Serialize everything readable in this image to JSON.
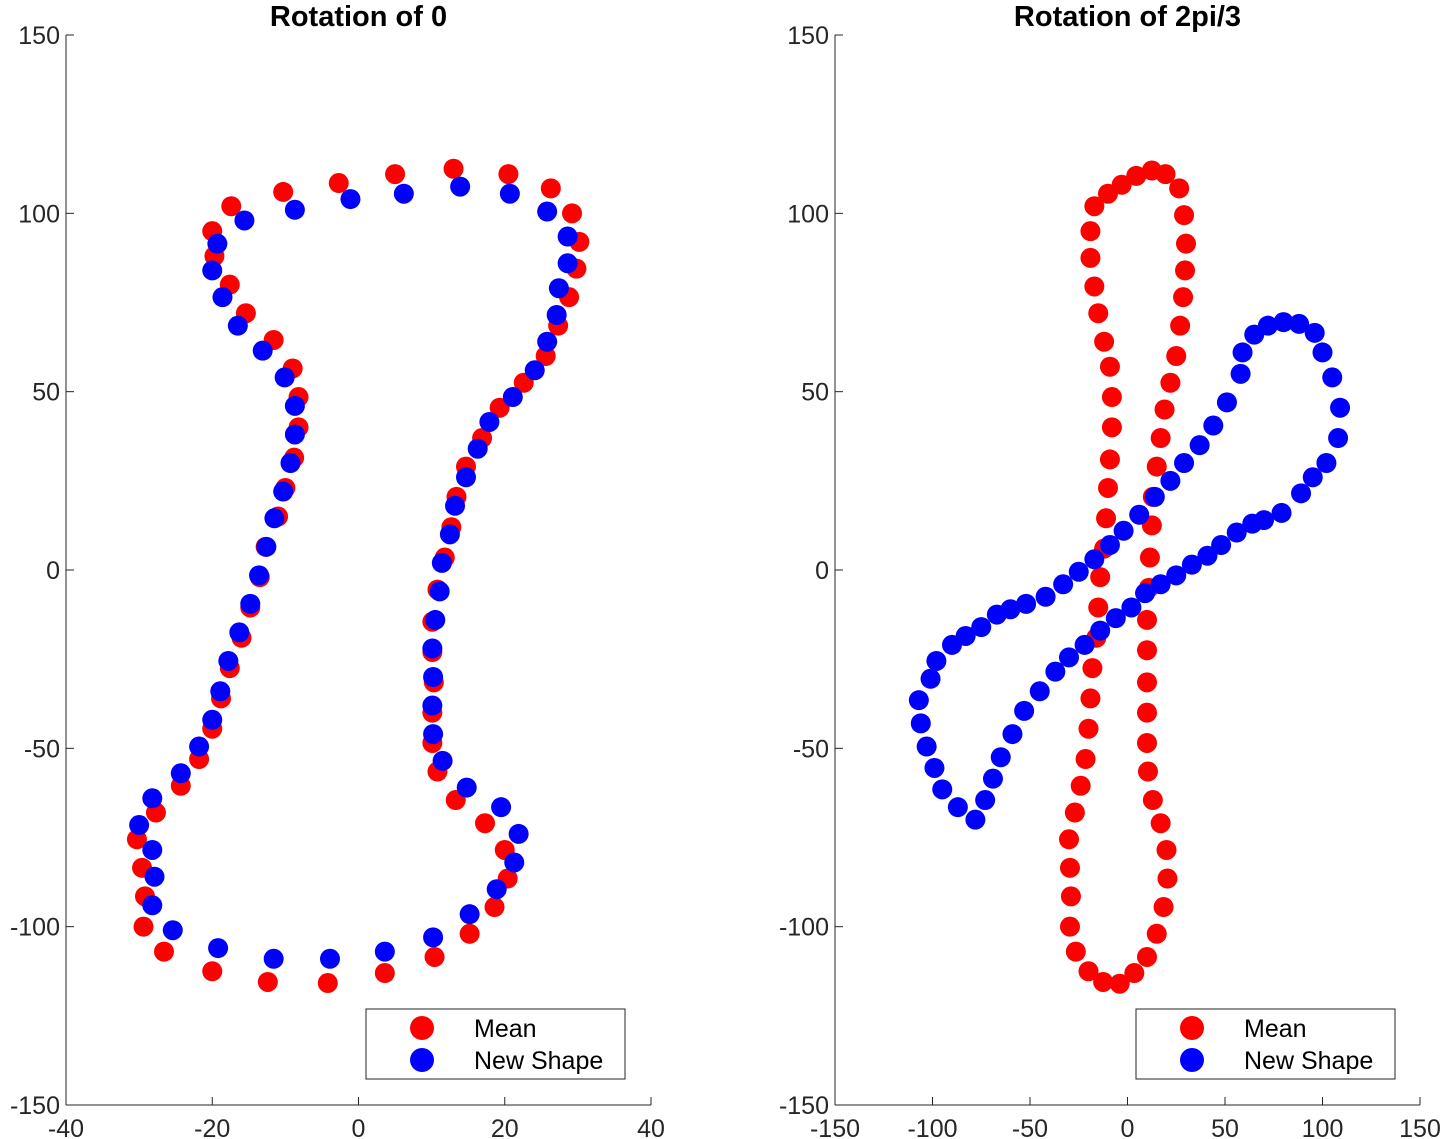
{
  "chart_data": [
    {
      "type": "scatter",
      "title": "Rotation of 0",
      "xlabel": "",
      "ylabel": "",
      "xlim": [
        -40,
        40
      ],
      "ylim": [
        -150,
        150
      ],
      "xticks": [
        -40,
        -20,
        0,
        20,
        40
      ],
      "yticks": [
        -150,
        -100,
        -50,
        0,
        50,
        100,
        150
      ],
      "grid": false,
      "legend_position": "bottom-right",
      "series": [
        {
          "name": "Mean",
          "color": "#ff0000",
          "points": [
            [
              -20,
              95
            ],
            [
              -19.7,
              88
            ],
            [
              -17.6,
              80
            ],
            [
              -15.4,
              72
            ],
            [
              -11.6,
              64.5
            ],
            [
              -9,
              56.5
            ],
            [
              -8.2,
              48.5
            ],
            [
              -8.2,
              40
            ],
            [
              -8.8,
              31.5
            ],
            [
              -10,
              23
            ],
            [
              -11,
              15
            ],
            [
              -12.7,
              6.5
            ],
            [
              -13.5,
              -2
            ],
            [
              -14.8,
              -10.5
            ],
            [
              -16,
              -19
            ],
            [
              -17.6,
              -27.5
            ],
            [
              -18.8,
              -36
            ],
            [
              -20,
              -44.5
            ],
            [
              -21.8,
              -53
            ],
            [
              -24.3,
              -60.5
            ],
            [
              -27.7,
              -68
            ],
            [
              -30.3,
              -75.5
            ],
            [
              -29.6,
              -83.5
            ],
            [
              -29.2,
              -91.5
            ],
            [
              -29.4,
              -100
            ],
            [
              -26.6,
              -107
            ],
            [
              -20,
              -112.5
            ],
            [
              -12.4,
              -115.5
            ],
            [
              -4.2,
              -115.8
            ],
            [
              3.6,
              -113
            ],
            [
              10.4,
              -108.5
            ],
            [
              15.2,
              -102
            ],
            [
              18.6,
              -94.5
            ],
            [
              20.4,
              -86.5
            ],
            [
              20,
              -78.5
            ],
            [
              17.3,
              -71
            ],
            [
              13.3,
              -64.5
            ],
            [
              10.8,
              -56.5
            ],
            [
              10.1,
              -48.5
            ],
            [
              10.1,
              -40
            ],
            [
              10.3,
              -31.5
            ],
            [
              10.1,
              -23
            ],
            [
              10.1,
              -14.5
            ],
            [
              10.8,
              -5.5
            ],
            [
              11.8,
              3.5
            ],
            [
              12.7,
              12
            ],
            [
              13.4,
              20.5
            ],
            [
              14.7,
              29
            ],
            [
              16.9,
              37
            ],
            [
              19.3,
              45.5
            ],
            [
              22.6,
              52.5
            ],
            [
              25.6,
              60
            ],
            [
              27.3,
              68.5
            ],
            [
              28.8,
              76.5
            ],
            [
              29.8,
              84.5
            ],
            [
              30.2,
              92
            ],
            [
              29.2,
              100
            ],
            [
              26.3,
              107
            ],
            [
              20.5,
              111
            ],
            [
              13,
              112.5
            ],
            [
              5,
              111
            ],
            [
              -2.7,
              108.5
            ],
            [
              -10.3,
              106
            ],
            [
              -17.4,
              102
            ]
          ]
        },
        {
          "name": "New Shape",
          "color": "#0000ff",
          "points": [
            [
              -19.3,
              91.5
            ],
            [
              -20,
              84
            ],
            [
              -18.6,
              76.5
            ],
            [
              -16.5,
              68.5
            ],
            [
              -13.1,
              61.5
            ],
            [
              -10.1,
              54
            ],
            [
              -8.7,
              46
            ],
            [
              -8.7,
              38
            ],
            [
              -9.3,
              30
            ],
            [
              -10.3,
              22
            ],
            [
              -11.5,
              14.5
            ],
            [
              -12.6,
              6.5
            ],
            [
              -13.6,
              -1.5
            ],
            [
              -14.8,
              -9.5
            ],
            [
              -16.3,
              -17.5
            ],
            [
              -17.8,
              -25.5
            ],
            [
              -18.9,
              -34
            ],
            [
              -20,
              -42
            ],
            [
              -21.8,
              -49.5
            ],
            [
              -24.3,
              -57
            ],
            [
              -28.2,
              -64
            ],
            [
              -30,
              -71.5
            ],
            [
              -28.2,
              -78.5
            ],
            [
              -27.9,
              -86
            ],
            [
              -28.2,
              -94
            ],
            [
              -25.4,
              -101
            ],
            [
              -19.2,
              -106
            ],
            [
              -11.6,
              -109
            ],
            [
              -3.9,
              -109
            ],
            [
              3.6,
              -107
            ],
            [
              10.2,
              -103
            ],
            [
              15.2,
              -96.5
            ],
            [
              18.9,
              -89.5
            ],
            [
              21.3,
              -82
            ],
            [
              21.9,
              -74
            ],
            [
              19.5,
              -66.5
            ],
            [
              14.8,
              -61
            ],
            [
              11.5,
              -53.5
            ],
            [
              10.2,
              -46
            ],
            [
              10.1,
              -38
            ],
            [
              10.2,
              -30
            ],
            [
              10.1,
              -22
            ],
            [
              10.5,
              -14
            ],
            [
              11.1,
              -6
            ],
            [
              11.4,
              2
            ],
            [
              12.5,
              10
            ],
            [
              13.2,
              18
            ],
            [
              14.7,
              26
            ],
            [
              16.3,
              34
            ],
            [
              17.9,
              41.5
            ],
            [
              21.1,
              48.5
            ],
            [
              24.1,
              56
            ],
            [
              25.8,
              64
            ],
            [
              27.1,
              71.5
            ],
            [
              27.4,
              79
            ],
            [
              28.6,
              86
            ],
            [
              28.6,
              93.5
            ],
            [
              25.8,
              100.5
            ],
            [
              20.7,
              105.5
            ],
            [
              13.9,
              107.5
            ],
            [
              6.2,
              105.5
            ],
            [
              -1.1,
              104
            ],
            [
              -8.7,
              101
            ],
            [
              -15.6,
              98
            ]
          ]
        }
      ]
    },
    {
      "type": "scatter",
      "title": "Rotation of 2pi/3",
      "xlabel": "",
      "ylabel": "",
      "xlim": [
        -150,
        150
      ],
      "ylim": [
        -150,
        150
      ],
      "xticks": [
        -150,
        -100,
        -50,
        0,
        50,
        100,
        150
      ],
      "yticks": [
        -150,
        -100,
        -50,
        0,
        50,
        100,
        150
      ],
      "grid": false,
      "legend_position": "bottom-right",
      "series": [
        {
          "name": "Mean",
          "color": "#ff0000",
          "points": [
            [
              -17,
              102
            ],
            [
              -19,
              95
            ],
            [
              -19,
              87.5
            ],
            [
              -17,
              79.5
            ],
            [
              -15,
              72
            ],
            [
              -12,
              64
            ],
            [
              -9,
              57
            ],
            [
              -8,
              48.5
            ],
            [
              -8,
              40
            ],
            [
              -9,
              31
            ],
            [
              -10,
              23
            ],
            [
              -11,
              14.5
            ],
            [
              -12,
              6
            ],
            [
              -14,
              -2
            ],
            [
              -15,
              -10.5
            ],
            [
              -16,
              -19
            ],
            [
              -18,
              -27.5
            ],
            [
              -19,
              -36
            ],
            [
              -20,
              -44.5
            ],
            [
              -21.5,
              -53
            ],
            [
              -24,
              -60.5
            ],
            [
              -27,
              -68
            ],
            [
              -30,
              -75.5
            ],
            [
              -29.5,
              -83.5
            ],
            [
              -29,
              -91.5
            ],
            [
              -29.5,
              -100
            ],
            [
              -26.5,
              -107
            ],
            [
              -20,
              -112.5
            ],
            [
              -12.5,
              -115.5
            ],
            [
              -4,
              -116
            ],
            [
              3.5,
              -113
            ],
            [
              10,
              -108.5
            ],
            [
              15,
              -102
            ],
            [
              18.5,
              -94.5
            ],
            [
              20.5,
              -86.5
            ],
            [
              20,
              -78.5
            ],
            [
              17,
              -71
            ],
            [
              13,
              -64.5
            ],
            [
              10.5,
              -56.5
            ],
            [
              10,
              -48.5
            ],
            [
              10,
              -40
            ],
            [
              10,
              -31.5
            ],
            [
              10,
              -22.5
            ],
            [
              10,
              -14
            ],
            [
              11,
              -5
            ],
            [
              11.5,
              3.5
            ],
            [
              12.5,
              12.5
            ],
            [
              13,
              20.5
            ],
            [
              15,
              29
            ],
            [
              17,
              37
            ],
            [
              19,
              45
            ],
            [
              22,
              52.5
            ],
            [
              25,
              60
            ],
            [
              27,
              68.5
            ],
            [
              28.5,
              76.5
            ],
            [
              29.5,
              84
            ],
            [
              30,
              91.5
            ],
            [
              29,
              99.5
            ],
            [
              26.5,
              107
            ],
            [
              19.5,
              111
            ],
            [
              12.5,
              112
            ],
            [
              4.5,
              110.5
            ],
            [
              -3,
              108
            ],
            [
              -10,
              105.5
            ]
          ]
        },
        {
          "name": "New Shape",
          "color": "#0000ff",
          "points": [
            [
              -78,
              -70
            ],
            [
              -87,
              -66.5
            ],
            [
              -95,
              -61.5
            ],
            [
              -99,
              -55.5
            ],
            [
              -103,
              -49.5
            ],
            [
              -106,
              -43
            ],
            [
              -107,
              -36.5
            ],
            [
              -101,
              -30.5
            ],
            [
              -98,
              -25.5
            ],
            [
              -90,
              -21
            ],
            [
              -83,
              -18.5
            ],
            [
              -75,
              -16
            ],
            [
              -67,
              -12.5
            ],
            [
              -60,
              -11
            ],
            [
              -52,
              -9.5
            ],
            [
              -42,
              -7.5
            ],
            [
              -33,
              -4
            ],
            [
              -25,
              -0.5
            ],
            [
              -17,
              3
            ],
            [
              -9,
              7
            ],
            [
              -2,
              11
            ],
            [
              6,
              15.5
            ],
            [
              14,
              20.5
            ],
            [
              22,
              25
            ],
            [
              29,
              30
            ],
            [
              37,
              35
            ],
            [
              44,
              40.5
            ],
            [
              51,
              47
            ],
            [
              58,
              55
            ],
            [
              59,
              61
            ],
            [
              65,
              66
            ],
            [
              72,
              68.5
            ],
            [
              80,
              69.5
            ],
            [
              88,
              69
            ],
            [
              96,
              66.5
            ],
            [
              100,
              61
            ],
            [
              105,
              54
            ],
            [
              109,
              45.5
            ],
            [
              108,
              37
            ],
            [
              102,
              30
            ],
            [
              95,
              26
            ],
            [
              89,
              21.5
            ],
            [
              79,
              16
            ],
            [
              70,
              14
            ],
            [
              64,
              13
            ],
            [
              56,
              10.5
            ],
            [
              48,
              7
            ],
            [
              41,
              4
            ],
            [
              33,
              1.5
            ],
            [
              25,
              -1.5
            ],
            [
              17,
              -4
            ],
            [
              9,
              -6.5
            ],
            [
              2,
              -10.5
            ],
            [
              -6,
              -13.5
            ],
            [
              -14,
              -17
            ],
            [
              -22,
              -21
            ],
            [
              -30,
              -24.5
            ],
            [
              -37,
              -28.5
            ],
            [
              -45,
              -34
            ],
            [
              -53,
              -39.5
            ],
            [
              -59,
              -46
            ],
            [
              -65,
              -52.5
            ],
            [
              -69,
              -58.5
            ],
            [
              -73,
              -64.5
            ]
          ]
        }
      ]
    }
  ]
}
